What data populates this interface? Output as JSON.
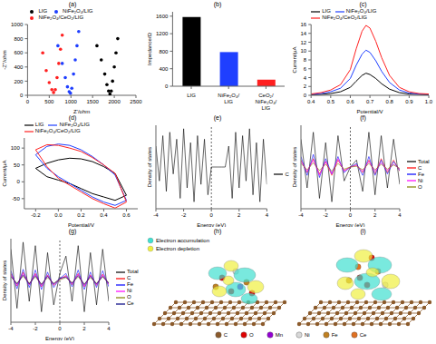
{
  "chart_data": [
    {
      "panel": "(a)",
      "type": "scatter",
      "x_label": "Z'/ohm",
      "y_label": "-Z''/ohm",
      "xlim": [
        0,
        2500
      ],
      "xticks": [
        0,
        500,
        1000,
        1500,
        2000,
        2500
      ],
      "ylim": [
        0,
        1000
      ],
      "yticks": [
        0,
        200,
        400,
        600,
        800,
        1000
      ],
      "legend": "top",
      "marker": "circle",
      "series": [
        {
          "name": "LIG",
          "color": "#000000",
          "x": [
            1600,
            1700,
            1780,
            1830,
            1870,
            1900,
            1930,
            1960,
            2000,
            2040,
            2080
          ],
          "values": [
            700,
            500,
            300,
            150,
            60,
            20,
            60,
            200,
            400,
            600,
            800
          ]
        },
        {
          "name": "NiFe₂O₄/LIG",
          "color": "#1f3fff",
          "x": [
            700,
            800,
            870,
            920,
            960,
            990,
            1020,
            1060,
            1100,
            1140,
            1180
          ],
          "values": [
            700,
            450,
            250,
            120,
            50,
            30,
            100,
            300,
            500,
            700,
            900
          ]
        },
        {
          "name": "NiFe₂O₄/CeO₂/LIG",
          "color": "#ff2020",
          "x": [
            350,
            430,
            500,
            560,
            600,
            640,
            680,
            720,
            760,
            800
          ],
          "values": [
            600,
            350,
            180,
            80,
            40,
            80,
            250,
            450,
            650,
            850
          ]
        }
      ]
    },
    {
      "panel": "(b)",
      "type": "bar",
      "y_label": "Impedance/Ω",
      "categories": [
        "LIG",
        "NiFe₂O₄/LIG",
        "CeO₂/NiFe₂O₄/LIG"
      ],
      "values": [
        1580,
        780,
        150
      ],
      "colors": [
        "#000000",
        "#1f3fff",
        "#ff2020"
      ],
      "ylim": [
        0,
        1700
      ],
      "yticks": [
        0,
        400,
        800,
        1200,
        1600
      ]
    },
    {
      "panel": "(c)",
      "type": "line",
      "x_label": "Potential/V",
      "y_label": "Current/μA",
      "xlim": [
        0.4,
        1
      ],
      "xticks": [
        0.4,
        0.5,
        0.6,
        0.7,
        0.8,
        0.9,
        {
          "value": 1,
          "label": "1.0"
        }
      ],
      "ylim": [
        0,
        16
      ],
      "yticks": [
        0,
        2,
        4,
        6,
        8,
        10,
        12,
        14,
        16
      ],
      "legend": "top",
      "x": [
        0.4,
        0.45,
        0.5,
        0.55,
        0.6,
        0.63,
        0.66,
        0.68,
        0.7,
        0.73,
        0.76,
        0.8,
        0.85,
        0.9,
        0.95,
        1
      ],
      "series": [
        {
          "name": "LIG",
          "color": "#000000",
          "values": [
            0.1,
            0.2,
            0.4,
            0.8,
            1.8,
            3.2,
            4.5,
            5.0,
            4.7,
            3.8,
            2.6,
            1.4,
            0.6,
            0.3,
            0.2,
            0.1
          ]
        },
        {
          "name": "NiFe₂O₄/LIG",
          "color": "#1f3fff",
          "values": [
            0.2,
            0.4,
            0.8,
            1.6,
            3.8,
            6.8,
            9.3,
            10.2,
            9.7,
            7.8,
            5.4,
            2.9,
            1.2,
            0.5,
            0.3,
            0.2
          ]
        },
        {
          "name": "NiFe₂O₄/CeO₂/LIG",
          "color": "#ff2020",
          "values": [
            0.3,
            0.6,
            1.2,
            2.4,
            5.8,
            10.5,
            14.5,
            15.8,
            15.2,
            12.2,
            8.5,
            4.5,
            1.8,
            0.8,
            0.4,
            0.3
          ]
        }
      ]
    },
    {
      "panel": "(d)",
      "type": "line",
      "x_label": "Potential/V",
      "y_label": "Current/μA",
      "xlim": [
        -0.3,
        0.7
      ],
      "xticks": [
        -0.2,
        {
          "value": 0,
          "label": "0.0"
        },
        0.2,
        0.4,
        0.6
      ],
      "ylim": [
        -80,
        130
      ],
      "yticks": [
        -50,
        0,
        50,
        100
      ],
      "legend": "top",
      "series": [
        {
          "name": "LIG",
          "color": "#000000",
          "x": [
            -0.2,
            -0.1,
            0,
            0.1,
            0.2,
            0.3,
            0.4,
            0.5,
            0.6,
            0.5,
            0.4,
            0.3,
            0.2,
            0.1,
            0,
            -0.1,
            -0.2
          ],
          "values": [
            40,
            55,
            65,
            70,
            68,
            60,
            45,
            25,
            -40,
            -55,
            -45,
            -35,
            -20,
            -5,
            5,
            15,
            40
          ]
        },
        {
          "name": "NiFe₂O₄/LIG",
          "color": "#1f3fff",
          "x": [
            -0.2,
            -0.1,
            0,
            0.1,
            0.2,
            0.3,
            0.4,
            0.5,
            0.6,
            0.5,
            0.4,
            0.3,
            0.2,
            0.1,
            0,
            -0.1,
            -0.2
          ],
          "values": [
            80,
            105,
            112,
            108,
            95,
            75,
            50,
            20,
            -55,
            -70,
            -60,
            -45,
            -25,
            -5,
            15,
            40,
            80
          ]
        },
        {
          "name": "NiFe₂O₄/CeO₂/LIG",
          "color": "#ff2020",
          "x": [
            -0.2,
            -0.1,
            0,
            0.1,
            0.2,
            0.3,
            0.4,
            0.5,
            0.6,
            0.5,
            0.4,
            0.3,
            0.2,
            0.1,
            0,
            -0.1,
            -0.2
          ],
          "values": [
            95,
            110,
            108,
            100,
            90,
            72,
            50,
            25,
            -60,
            -78,
            -65,
            -50,
            -30,
            -10,
            10,
            45,
            95
          ]
        }
      ]
    },
    {
      "panel": "(e)",
      "type": "line",
      "x_label": "Energy (eV)",
      "y_label": "Density of states",
      "xlim": [
        -4,
        4
      ],
      "xticks": [
        -4,
        -2,
        0,
        2,
        4
      ],
      "ylim": [
        -60,
        60
      ],
      "tick_labels": "x",
      "legend": "right",
      "fermi_level": 0,
      "x": [
        -4,
        -3.75,
        -3.5,
        -3.25,
        -3,
        -2.75,
        -2.5,
        -2.25,
        -2,
        -1.75,
        -1.5,
        -1.25,
        -1,
        -0.75,
        -0.5,
        -0.25,
        0,
        0.25,
        0.5,
        0.75,
        1,
        1.25,
        1.5,
        1.75,
        2,
        2.25,
        2.5,
        2.75,
        3,
        3.25,
        3.5,
        3.75,
        4
      ],
      "series": [
        {
          "name": "C",
          "color": "#000000",
          "values": [
            30,
            -20,
            45,
            -35,
            50,
            -10,
            40,
            -45,
            55,
            -30,
            35,
            -50,
            45,
            -25,
            40,
            -40,
            0,
            0,
            0,
            0,
            0,
            30,
            -45,
            50,
            -30,
            45,
            -20,
            55,
            -40,
            35,
            -50,
            40,
            -25
          ]
        }
      ]
    },
    {
      "panel": "(f)",
      "type": "line",
      "x_label": "Energy (eV)",
      "y_label": "Density of states",
      "xlim": [
        -4,
        4
      ],
      "xticks": [
        -4,
        -2,
        0,
        2,
        4
      ],
      "ylim": [
        -60,
        60
      ],
      "tick_labels": "x",
      "legend": "right",
      "fermi_level": 0,
      "x": [
        -4,
        -3.5,
        -3,
        -2.5,
        -2,
        -1.5,
        -1,
        -0.5,
        0,
        0.5,
        1,
        1.5,
        2,
        2.5,
        3,
        3.5,
        4
      ],
      "series": [
        {
          "name": "Total",
          "color": "#000000",
          "values": [
            40,
            -30,
            50,
            -45,
            35,
            -50,
            45,
            -20,
            0,
            10,
            -35,
            50,
            -40,
            45,
            -30,
            40,
            -25
          ]
        },
        {
          "name": "C",
          "color": "#ff0000",
          "values": [
            10,
            -8,
            12,
            -10,
            8,
            -12,
            10,
            -5,
            0,
            3,
            -8,
            10,
            -10,
            12,
            -8,
            10,
            -6
          ]
        },
        {
          "name": "Fe",
          "color": "#0000ff",
          "values": [
            15,
            -12,
            18,
            -15,
            12,
            -10,
            15,
            -8,
            0,
            5,
            -12,
            15,
            -12,
            10,
            -10,
            8,
            -5
          ]
        },
        {
          "name": "Ni",
          "color": "#ff00ff",
          "values": [
            8,
            -6,
            10,
            -12,
            8,
            -10,
            12,
            -6,
            0,
            2,
            -6,
            8,
            -6,
            6,
            -5,
            4,
            -3
          ]
        },
        {
          "name": "O",
          "color": "#808000",
          "values": [
            5,
            -4,
            6,
            -5,
            4,
            -6,
            5,
            -3,
            0,
            1,
            -4,
            5,
            -4,
            4,
            -3,
            3,
            -2
          ]
        }
      ]
    },
    {
      "panel": "(g)",
      "type": "line",
      "x_label": "Energy (eV)",
      "y_label": "Density of states",
      "xlim": [
        -4,
        4
      ],
      "xticks": [
        -4,
        -2,
        0,
        2,
        4
      ],
      "ylim": [
        -60,
        60
      ],
      "tick_labels": "x",
      "legend": "right",
      "fermi_level": 0,
      "x": [
        -4,
        -3.5,
        -3,
        -2.5,
        -2,
        -1.5,
        -1,
        -0.5,
        0,
        0.5,
        1,
        1.5,
        2,
        2.5,
        3,
        3.5,
        4
      ],
      "series": [
        {
          "name": "Total",
          "color": "#000000",
          "values": [
            45,
            -40,
            55,
            -30,
            50,
            -45,
            40,
            -35,
            10,
            35,
            -30,
            50,
            -45,
            40,
            -35,
            45,
            -30
          ]
        },
        {
          "name": "C",
          "color": "#ff0000",
          "values": [
            10,
            -8,
            12,
            -6,
            10,
            -9,
            8,
            -7,
            2,
            7,
            -6,
            10,
            -9,
            8,
            -7,
            9,
            -6
          ]
        },
        {
          "name": "Fe",
          "color": "#0000ff",
          "values": [
            14,
            -12,
            16,
            -10,
            15,
            -13,
            12,
            -10,
            3,
            10,
            -9,
            15,
            -13,
            12,
            -10,
            14,
            -9
          ]
        },
        {
          "name": "Ni",
          "color": "#ff00ff",
          "values": [
            8,
            -7,
            10,
            -6,
            9,
            -8,
            7,
            -6,
            2,
            6,
            -5,
            9,
            -8,
            7,
            -6,
            8,
            -5
          ]
        },
        {
          "name": "O",
          "color": "#808000",
          "values": [
            5,
            -4,
            6,
            -4,
            5,
            -5,
            4,
            -4,
            1,
            4,
            -3,
            5,
            -5,
            4,
            -4,
            5,
            -3
          ]
        },
        {
          "name": "Ce",
          "color": "#000080",
          "values": [
            6,
            -5,
            8,
            -5,
            7,
            -6,
            6,
            -5,
            3,
            5,
            -4,
            7,
            -6,
            6,
            -5,
            6,
            -4
          ]
        }
      ]
    }
  ],
  "figures": [
    {
      "panel": "(h)",
      "legend": [
        {
          "name": "Electron accumulation",
          "color": "#40e0d0"
        },
        {
          "name": "Electron depletion",
          "color": "#f0f040"
        }
      ]
    },
    {
      "panel": "(i)"
    }
  ],
  "elements": [
    {
      "name": "C",
      "color": "#8b5a2b"
    },
    {
      "name": "O",
      "color": "#e00000"
    },
    {
      "name": "Mn",
      "color": "#9400d3"
    },
    {
      "name": "Ni",
      "color": "#d8d8d8"
    },
    {
      "name": "Fe",
      "color": "#c08020"
    },
    {
      "name": "Ce",
      "color": "#e07020"
    }
  ]
}
